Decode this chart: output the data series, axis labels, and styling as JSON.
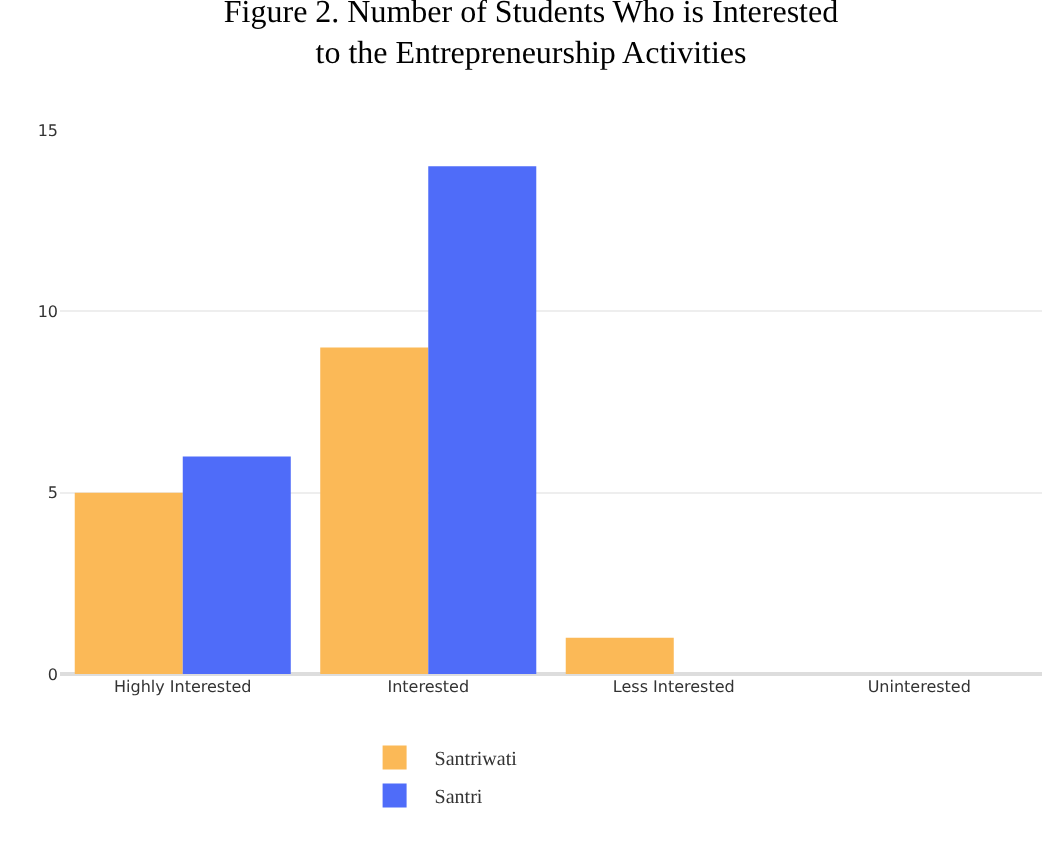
{
  "chart_data": {
    "type": "bar",
    "title": "Figure 2. Number of Students Who is Interested\nto the Entrepreneurship Activities",
    "categories": [
      "Highly Interested",
      "Interested",
      "Less Interested",
      "Uninterested"
    ],
    "series": [
      {
        "name": "Santriwati",
        "color": "#fbb957",
        "values": [
          5,
          9,
          1,
          0
        ]
      },
      {
        "name": "Santri",
        "color": "#4f6cf9",
        "values": [
          6,
          14,
          0,
          0
        ]
      }
    ],
    "ylim": [
      0,
      15
    ],
    "yticks": [
      0,
      5,
      10,
      15
    ],
    "grid": "y",
    "legend": "bottom"
  }
}
